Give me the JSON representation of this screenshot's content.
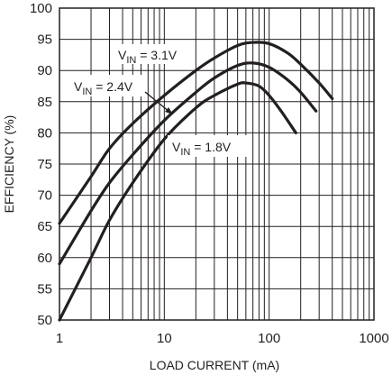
{
  "chart_data": {
    "type": "line",
    "xlabel": "LOAD CURRENT (mA)",
    "ylabel": "EFFICIENCY (%)",
    "x_scale": "log",
    "xlim": [
      1,
      1000
    ],
    "ylim": [
      50,
      100
    ],
    "x_ticks": [
      "1",
      "10",
      "100",
      "1000"
    ],
    "y_ticks": [
      "50",
      "55",
      "60",
      "65",
      "70",
      "75",
      "80",
      "85",
      "90",
      "95",
      "100"
    ],
    "grid": true,
    "series": [
      {
        "name": "3.1V",
        "label_prefix": "V",
        "label_sub": "IN",
        "label_eq": " = ",
        "x": [
          1,
          2,
          3,
          5,
          10,
          20,
          30,
          50,
          70,
          100,
          150,
          200,
          300,
          400
        ],
        "y": [
          65.5,
          73.0,
          77.5,
          81.5,
          86.0,
          90.0,
          92.0,
          94.0,
          94.5,
          94.3,
          92.8,
          91.0,
          88.0,
          85.5
        ]
      },
      {
        "name": "2.4V",
        "label_prefix": "V",
        "label_sub": "IN",
        "label_eq": " = ",
        "x": [
          1,
          2,
          3,
          5,
          10,
          20,
          30,
          50,
          70,
          100,
          150,
          200,
          280
        ],
        "y": [
          59.0,
          67.5,
          72.0,
          76.5,
          82.0,
          86.5,
          88.8,
          90.8,
          91.2,
          90.5,
          88.5,
          86.5,
          83.5
        ]
      },
      {
        "name": "1.8V",
        "label_prefix": "V",
        "label_sub": "IN",
        "label_eq": " = ",
        "x": [
          1,
          2,
          3,
          5,
          10,
          20,
          30,
          50,
          60,
          80,
          100,
          130,
          180
        ],
        "y": [
          50.0,
          60.0,
          66.0,
          72.0,
          79.0,
          84.0,
          86.0,
          87.8,
          88.0,
          87.5,
          86.0,
          83.5,
          80.0
        ]
      }
    ]
  }
}
